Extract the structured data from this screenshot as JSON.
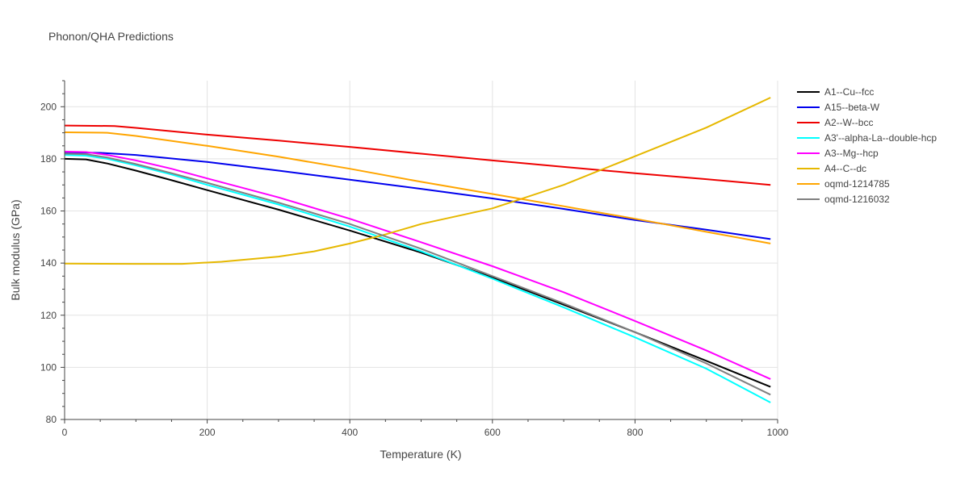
{
  "chart_data": {
    "type": "line",
    "title": "Phonon/QHA Predictions",
    "xlabel": "Temperature (K)",
    "ylabel": "Bulk modulus (GPa)",
    "xlim": [
      0,
      1000
    ],
    "ylim": [
      80,
      210
    ],
    "xticks": [
      0,
      200,
      400,
      600,
      800,
      1000
    ],
    "yticks": [
      80,
      100,
      120,
      140,
      160,
      180,
      200
    ],
    "grid": true,
    "legend_position": "right",
    "series": [
      {
        "name": "A1--Cu--fcc",
        "color": "#000000",
        "x": [
          0,
          30,
          60,
          100,
          150,
          200,
          300,
          400,
          500,
          600,
          700,
          800,
          900,
          990
        ],
        "y": [
          180.0,
          179.8,
          178.2,
          175.5,
          171.8,
          168.0,
          160.5,
          152.5,
          144.0,
          134.5,
          124.0,
          113.5,
          102.5,
          92.5
        ]
      },
      {
        "name": "A15--beta-W",
        "color": "#0000ee",
        "x": [
          0,
          50,
          100,
          200,
          300,
          400,
          500,
          600,
          700,
          800,
          900,
          990
        ],
        "y": [
          182.5,
          182.3,
          181.5,
          178.8,
          175.5,
          172.0,
          168.5,
          164.8,
          160.8,
          156.5,
          152.8,
          149.2
        ]
      },
      {
        "name": "A2--W--bcc",
        "color": "#ee0000",
        "x": [
          0,
          70,
          100,
          200,
          300,
          400,
          500,
          600,
          700,
          800,
          900,
          990
        ],
        "y": [
          192.8,
          192.6,
          191.9,
          189.3,
          187.0,
          184.6,
          182.0,
          179.4,
          176.9,
          174.5,
          172.2,
          170.0
        ]
      },
      {
        "name": "A3'--alpha-La--double-hcp",
        "color": "#00ffff",
        "x": [
          0,
          30,
          60,
          100,
          150,
          200,
          300,
          400,
          500,
          600,
          700,
          800,
          900,
          990
        ],
        "y": [
          181.5,
          181.2,
          180.0,
          177.5,
          174.0,
          170.0,
          162.5,
          154.0,
          144.5,
          134.0,
          123.0,
          111.5,
          99.5,
          86.5
        ]
      },
      {
        "name": "A3--Mg--hcp",
        "color": "#ff00ff",
        "x": [
          0,
          30,
          60,
          100,
          150,
          200,
          300,
          400,
          500,
          600,
          700,
          800,
          900,
          990
        ],
        "y": [
          182.8,
          182.6,
          181.5,
          179.4,
          176.2,
          172.5,
          165.2,
          157.0,
          148.0,
          138.8,
          128.8,
          117.8,
          106.5,
          95.5
        ]
      },
      {
        "name": "A4--C--dc",
        "color": "#e6b800",
        "x": [
          0,
          100,
          165,
          220,
          300,
          350,
          400,
          450,
          500,
          600,
          700,
          800,
          900,
          990
        ],
        "y": [
          139.8,
          139.7,
          139.7,
          140.5,
          142.5,
          144.5,
          147.5,
          151.0,
          155.0,
          161.0,
          170.0,
          181.0,
          192.0,
          203.5
        ]
      },
      {
        "name": "oqmd-1214785",
        "color": "#ffa500",
        "x": [
          0,
          60,
          100,
          200,
          300,
          400,
          500,
          600,
          700,
          800,
          900,
          990
        ],
        "y": [
          190.2,
          190.0,
          188.8,
          185.0,
          180.8,
          176.2,
          171.2,
          166.5,
          161.8,
          157.0,
          152.0,
          147.5
        ]
      },
      {
        "name": "oqmd-1216032",
        "color": "#808080",
        "x": [
          0,
          30,
          60,
          100,
          150,
          200,
          300,
          400,
          500,
          600,
          700,
          800,
          900,
          990
        ],
        "y": [
          182.0,
          181.8,
          180.5,
          178.0,
          174.5,
          170.8,
          163.2,
          155.0,
          145.5,
          135.0,
          124.5,
          113.5,
          101.5,
          89.5
        ]
      }
    ]
  }
}
